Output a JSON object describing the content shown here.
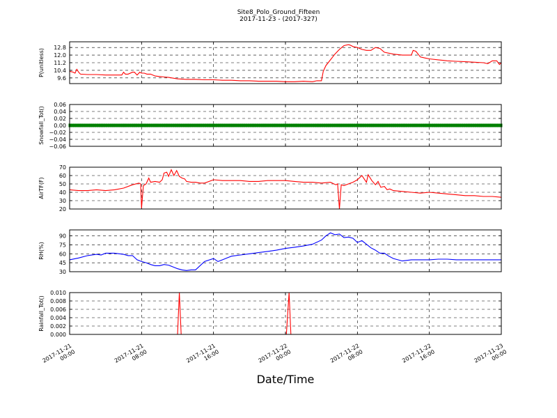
{
  "title": "Site8_Polo_Ground_Fifteen",
  "subtitle": "2017-11-23 - (2017-327)",
  "xlabel": "Date/Time",
  "chart_data": [
    {
      "type": "line",
      "ylabel": "P(unitless)",
      "ylim": [
        9.0,
        13.4
      ],
      "yticks": [
        "9.6",
        "10.4",
        "11.2",
        "12.0",
        "12.8"
      ],
      "ytick_values": [
        9.6,
        10.4,
        11.2,
        12.0,
        12.8
      ],
      "xlim": [
        0,
        48
      ],
      "grid": true,
      "color": "#ff0000",
      "x": [
        0,
        0.4,
        0.6,
        0.8,
        1.0,
        1.2,
        2,
        3,
        4,
        5,
        5.8,
        6,
        6.2,
        6.5,
        7,
        7.2,
        7.5,
        7.8,
        8,
        8.3,
        8.6,
        9,
        9.5,
        10,
        10.5,
        11,
        12,
        13,
        14,
        15,
        16,
        17,
        18,
        19,
        20,
        21,
        22,
        23,
        24,
        25,
        26,
        27,
        27.5,
        28,
        28.2,
        28.5,
        29,
        29.5,
        30,
        30.5,
        31,
        31.2,
        31.5,
        32,
        32.5,
        33,
        33.5,
        34,
        34.5,
        35,
        36,
        37,
        38,
        38.2,
        38.5,
        39,
        39.5,
        40,
        41,
        42,
        43,
        44,
        45,
        46,
        46.5,
        47,
        47.5,
        47.8,
        48
      ],
      "values": [
        10.3,
        10.2,
        10.1,
        10.5,
        10.2,
        10.0,
        9.95,
        9.95,
        9.9,
        9.9,
        9.9,
        10.2,
        10.0,
        10.0,
        10.2,
        10.2,
        9.9,
        10.2,
        10.1,
        10.1,
        10.0,
        10.0,
        9.8,
        9.75,
        9.7,
        9.65,
        9.5,
        9.45,
        9.45,
        9.4,
        9.4,
        9.35,
        9.35,
        9.3,
        9.3,
        9.25,
        9.25,
        9.25,
        9.2,
        9.2,
        9.25,
        9.2,
        9.3,
        9.3,
        10.3,
        10.9,
        11.5,
        12.1,
        12.6,
        13.0,
        13.1,
        13.05,
        12.9,
        12.8,
        12.6,
        12.5,
        12.5,
        12.8,
        12.7,
        12.3,
        12.1,
        12.0,
        12.0,
        12.5,
        12.4,
        11.8,
        11.7,
        11.6,
        11.5,
        11.4,
        11.35,
        11.3,
        11.25,
        11.2,
        11.1,
        11.4,
        11.4,
        11.0,
        11.2
      ]
    },
    {
      "type": "line",
      "ylabel": "Snowfall_Tot()",
      "ylim": [
        -0.06,
        0.06
      ],
      "yticks": [
        "0.06",
        "0.04",
        "0.02",
        "0.00",
        "−0.02",
        "−0.04",
        "−0.06"
      ],
      "ytick_values": [
        0.06,
        0.04,
        0.02,
        0.0,
        -0.02,
        -0.04,
        -0.06
      ],
      "xlim": [
        0,
        48
      ],
      "grid": true,
      "color": "#008000",
      "markers": true,
      "x": [
        0,
        48
      ],
      "values": [
        0.0,
        0.0
      ]
    },
    {
      "type": "line",
      "ylabel": "AirTF(F)",
      "ylim": [
        20,
        70
      ],
      "yticks": [
        "70",
        "60",
        "50",
        "40",
        "30",
        "20"
      ],
      "ytick_values": [
        70,
        60,
        50,
        40,
        30,
        20
      ],
      "xlim": [
        0,
        48
      ],
      "grid": true,
      "color": "#ff0000",
      "x": [
        0,
        1,
        2,
        3,
        4,
        5,
        6,
        7,
        7.7,
        7.9,
        8.0,
        8.2,
        8.5,
        8.8,
        9,
        9.5,
        10,
        10.3,
        10.5,
        10.8,
        11,
        11.3,
        11.6,
        11.9,
        12.2,
        12.5,
        12.8,
        13,
        13.5,
        14,
        14.5,
        15,
        16,
        17,
        18,
        19,
        20,
        21,
        22,
        23,
        24,
        25,
        26,
        27,
        28,
        29,
        29.6,
        29.8,
        30.0,
        30.2,
        30.5,
        31,
        31.5,
        32,
        32.5,
        33,
        33.2,
        33.6,
        34,
        34.3,
        34.6,
        35,
        35.3,
        35.6,
        36,
        37,
        38,
        39,
        40,
        41,
        42,
        43,
        44,
        45,
        46,
        47,
        48
      ],
      "values": [
        43,
        42,
        42,
        43,
        42,
        43,
        45,
        49,
        51,
        50,
        21,
        48,
        50,
        57,
        52,
        53,
        52,
        55,
        63,
        64,
        59,
        67,
        60,
        66,
        59,
        57,
        56,
        53,
        52,
        52,
        51,
        51,
        55,
        54,
        54,
        54,
        53,
        53,
        54,
        54,
        54,
        53,
        52,
        52,
        51,
        52,
        49,
        50,
        20,
        49,
        48,
        50,
        52,
        55,
        60,
        52,
        61,
        54,
        49,
        53,
        46,
        47,
        43,
        44,
        42,
        41,
        40,
        39,
        40,
        39,
        38,
        37,
        36,
        36,
        35,
        35,
        34
      ]
    },
    {
      "type": "line",
      "ylabel": "RH(%)",
      "ylim": [
        30,
        100
      ],
      "yticks": [
        "90",
        "75",
        "60",
        "45",
        "30"
      ],
      "ytick_values": [
        90,
        75,
        60,
        45,
        30
      ],
      "xlim": [
        0,
        48
      ],
      "grid": true,
      "color": "#0000ff",
      "x": [
        0,
        1,
        2,
        3,
        3.5,
        4,
        5,
        6,
        6.5,
        7,
        7.5,
        8,
        8.5,
        9,
        9.5,
        10,
        10.5,
        11,
        11.5,
        12,
        12.5,
        13,
        13.5,
        14,
        15,
        16,
        16.5,
        17,
        17.5,
        18,
        19,
        20,
        21,
        22,
        23,
        24,
        25,
        26,
        27,
        28,
        28.5,
        29,
        29.5,
        30,
        30.5,
        31,
        31.5,
        32,
        32.5,
        33,
        33.5,
        34,
        34.5,
        35,
        35.5,
        36,
        37,
        38,
        39,
        40,
        41,
        42,
        43,
        44,
        45,
        46,
        47,
        48
      ],
      "values": [
        50,
        53,
        57,
        59,
        58,
        61,
        61,
        59,
        57,
        57,
        50,
        47,
        45,
        42,
        40,
        40,
        42,
        41,
        38,
        35,
        33,
        32,
        33,
        33,
        47,
        52,
        47,
        50,
        53,
        56,
        58,
        60,
        62,
        64,
        66,
        69,
        71,
        73,
        76,
        83,
        90,
        95,
        92,
        93,
        87,
        88,
        86,
        79,
        82,
        76,
        70,
        66,
        61,
        61,
        56,
        52,
        48,
        50,
        50,
        50,
        51,
        51,
        50,
        50,
        50,
        50,
        50,
        50
      ]
    },
    {
      "type": "line",
      "ylabel": "Rainfall_Tot()",
      "ylim": [
        0,
        0.01
      ],
      "yticks": [
        "0.010",
        "0.008",
        "0.006",
        "0.004",
        "0.002",
        "0.000"
      ],
      "ytick_values": [
        0.01,
        0.008,
        0.006,
        0.004,
        0.002,
        0.0
      ],
      "xlim": [
        0,
        48
      ],
      "grid": true,
      "color": "#ff0000",
      "x": [
        0,
        12.0,
        12.2,
        12.4,
        24.1,
        24.4,
        24.6,
        48
      ],
      "values": [
        0,
        0,
        0.01,
        0,
        0,
        0.01,
        0,
        0
      ]
    }
  ],
  "xticks": [
    {
      "value": 0,
      "line1": "2017-11-21",
      "line2": "00:00"
    },
    {
      "value": 8,
      "line1": "2017-11-21",
      "line2": "08:00"
    },
    {
      "value": 16,
      "line1": "2017-11-21",
      "line2": "16:00"
    },
    {
      "value": 24,
      "line1": "2017-11-22",
      "line2": "00:00"
    },
    {
      "value": 32,
      "line1": "2017-11-22",
      "line2": "08:00"
    },
    {
      "value": 40,
      "line1": "2017-11-22",
      "line2": "16:00"
    },
    {
      "value": 48,
      "line1": "2017-11-23",
      "line2": "00:00"
    }
  ]
}
